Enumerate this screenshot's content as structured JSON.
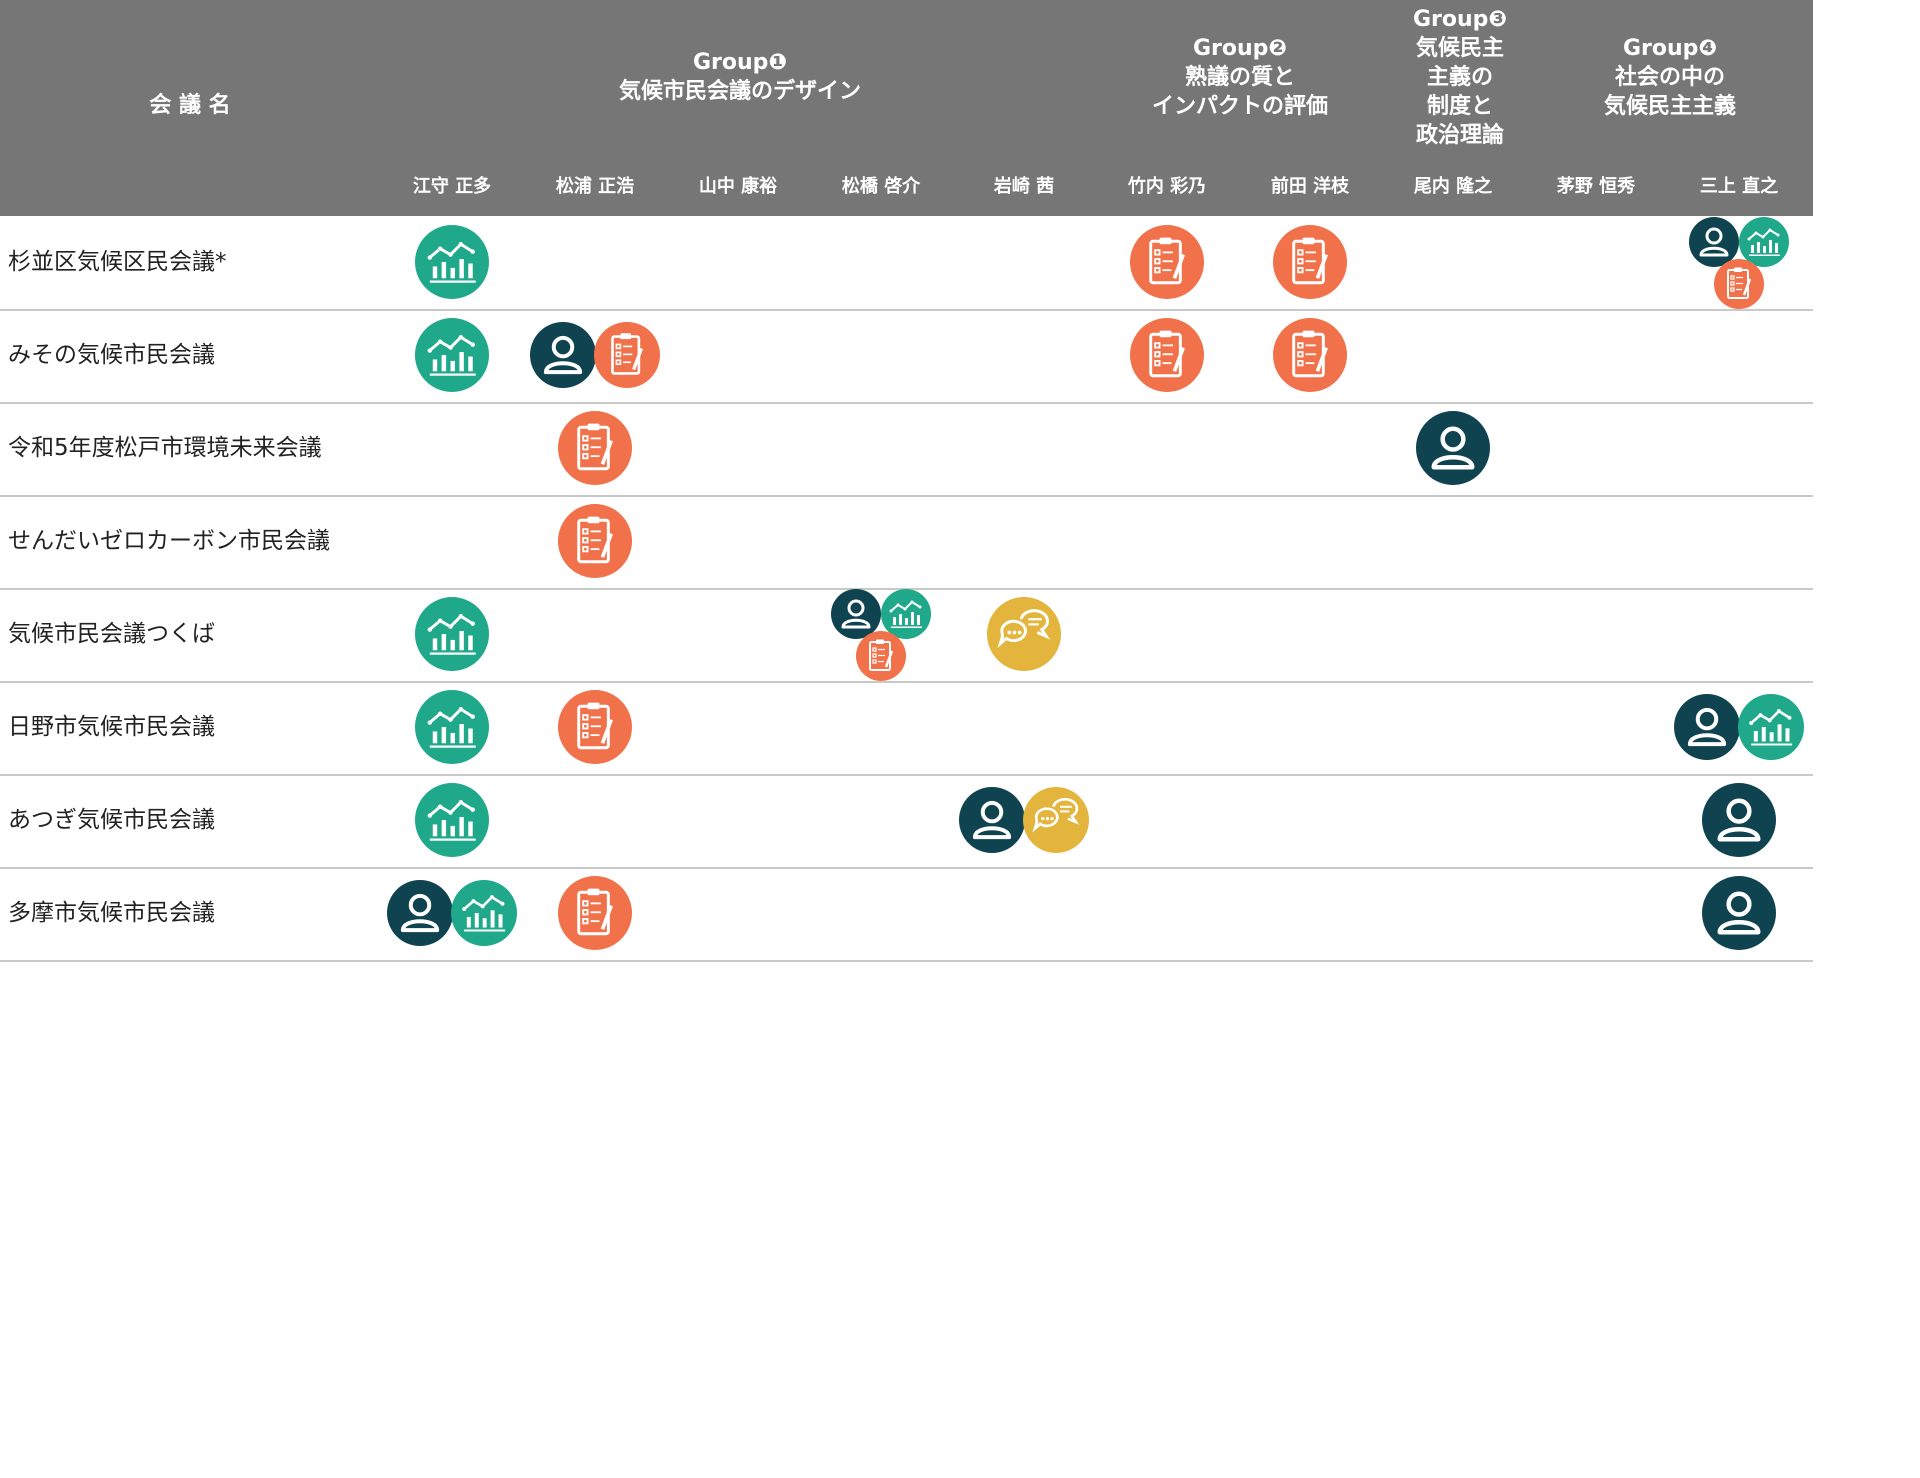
{
  "header": {
    "meeting_label": "会 議 名",
    "groups": [
      {
        "label": "Group❶\n気候市民会議のデザイン"
      },
      {
        "label": "Group❷\n熟議の質と\nインパクトの評価"
      },
      {
        "label": "Group❸\n気候民主\n主義の\n制度と\n政治理論"
      },
      {
        "label": "Group❹\n社会の中の\n気候民主主義"
      }
    ],
    "researchers": [
      "江守 正多",
      "松浦 正浩",
      "山中 康裕",
      "松橋 啓介",
      "岩崎 茜",
      "竹内 彩乃",
      "前田 洋枝",
      "尾内 隆之",
      "茅野 恒秀",
      "三上 直之"
    ]
  },
  "colors": {
    "header_bg": "#767676",
    "person": "#0f4350",
    "data": "#1fa88a",
    "evaluation": "#f0714a",
    "dialogue": "#e3b53c",
    "divider": "#c9c9c9"
  },
  "icon_types": {
    "person": "person-icon",
    "data": "chart-icon",
    "evaluation": "clipboard-icon",
    "dialogue": "chat-bubbles-icon"
  },
  "rows": [
    {
      "name": "杉並区気候区民会議*",
      "cells": [
        [
          "data"
        ],
        [],
        [],
        [],
        [],
        [
          "evaluation"
        ],
        [
          "evaluation"
        ],
        [],
        [],
        [
          "person",
          "data",
          "evaluation"
        ]
      ]
    },
    {
      "name": "みその気候市民会議",
      "cells": [
        [
          "data"
        ],
        [
          "person",
          "evaluation"
        ],
        [],
        [],
        [],
        [
          "evaluation"
        ],
        [
          "evaluation"
        ],
        [],
        [],
        []
      ]
    },
    {
      "name": "令和5年度松戸市環境未来会議",
      "cells": [
        [],
        [
          "evaluation"
        ],
        [],
        [],
        [],
        [],
        [],
        [
          "person"
        ],
        [],
        []
      ]
    },
    {
      "name": "せんだいゼロカーボン市民会議",
      "cells": [
        [],
        [
          "evaluation"
        ],
        [],
        [],
        [],
        [],
        [],
        [],
        [],
        []
      ]
    },
    {
      "name": "気候市民会議つくば",
      "cells": [
        [
          "data"
        ],
        [],
        [],
        [
          "person",
          "data",
          "evaluation"
        ],
        [
          "dialogue"
        ],
        [],
        [],
        [],
        [],
        []
      ]
    },
    {
      "name": "日野市気候市民会議",
      "cells": [
        [
          "data"
        ],
        [
          "evaluation"
        ],
        [],
        [],
        [],
        [],
        [],
        [],
        [],
        [
          "person",
          "data"
        ]
      ]
    },
    {
      "name": "あつぎ気候市民会議",
      "cells": [
        [
          "data"
        ],
        [],
        [],
        [],
        [
          "person",
          "dialogue"
        ],
        [],
        [],
        [],
        [],
        [
          "person"
        ]
      ]
    },
    {
      "name": "多摩市気候市民会議",
      "cells": [
        [
          "person",
          "data"
        ],
        [
          "evaluation"
        ],
        [],
        [],
        [],
        [],
        [],
        [],
        [],
        [
          "person"
        ]
      ]
    }
  ]
}
